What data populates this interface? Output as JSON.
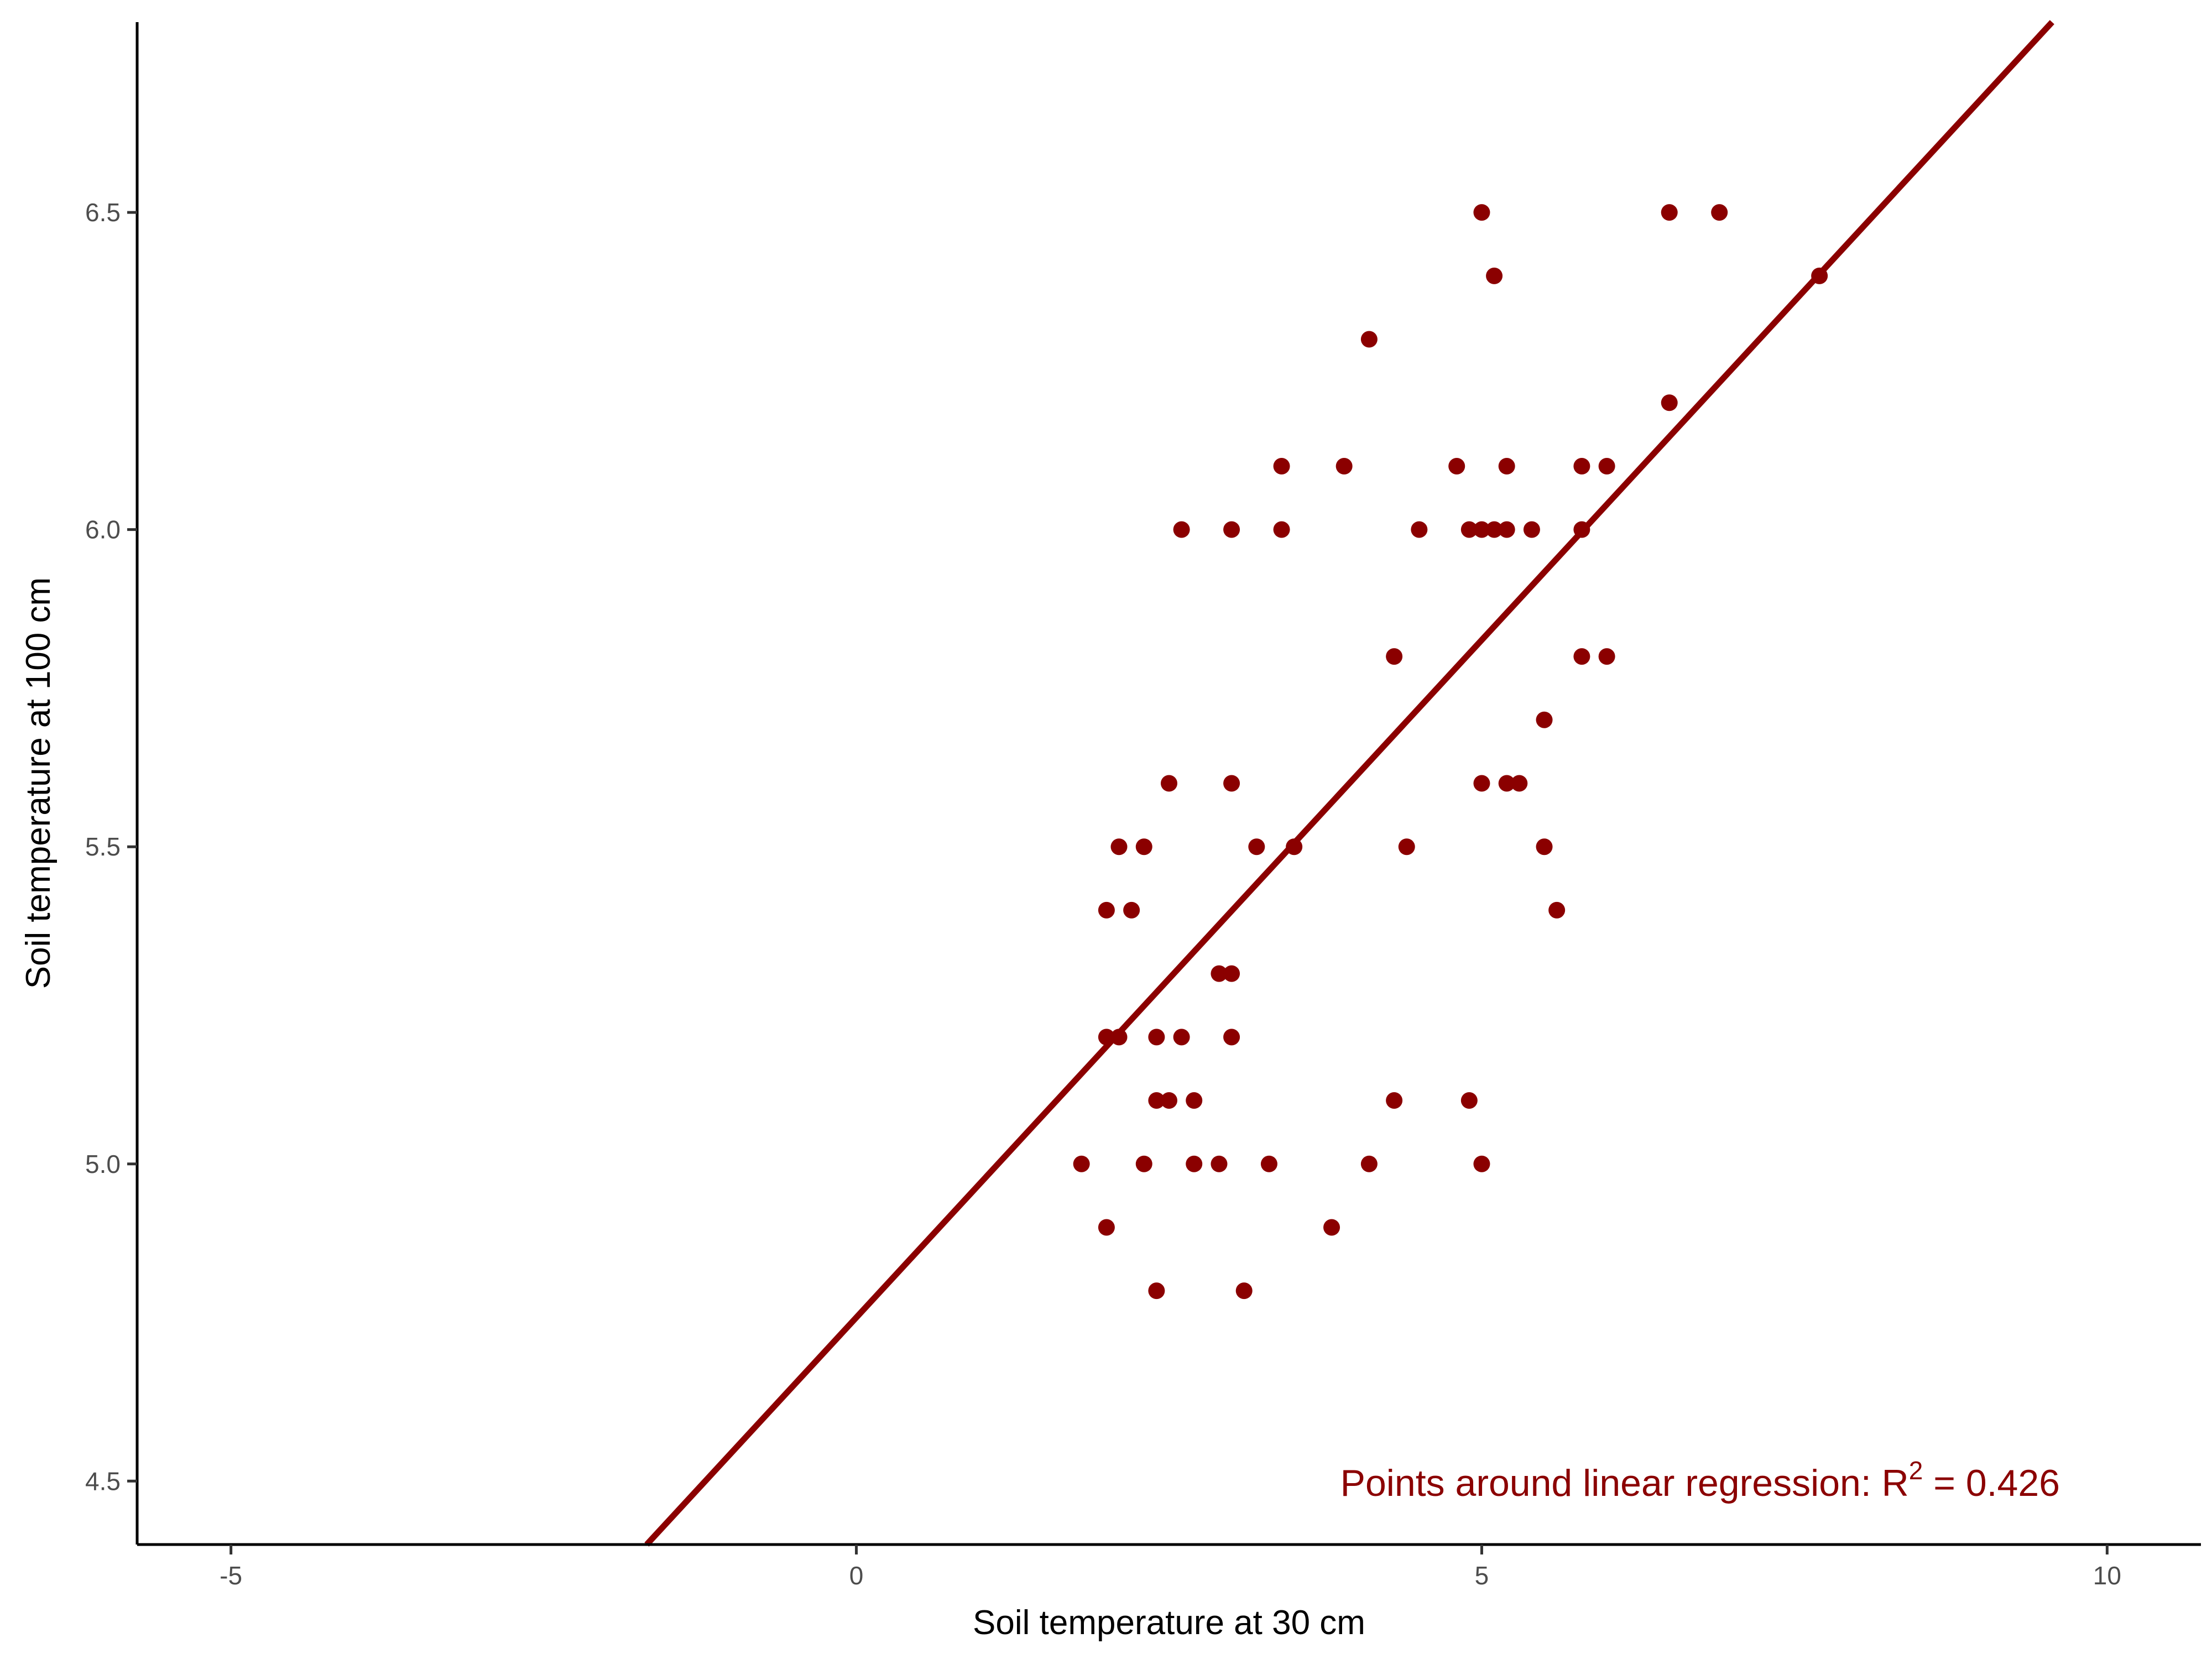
{
  "chart_data": {
    "type": "scatter",
    "xlabel": "Soil temperature at 30 cm",
    "ylabel": "Soil temperature at 100 cm",
    "xlim": [
      -5.75,
      10.75
    ],
    "ylim": [
      4.4,
      6.8
    ],
    "x_ticks": [
      -5,
      0,
      5,
      10
    ],
    "x_tick_labels": [
      "-5",
      "0",
      "5",
      "10"
    ],
    "y_ticks": [
      4.5,
      5.0,
      5.5,
      6.0,
      6.5
    ],
    "y_tick_labels": [
      "4.5",
      "5.0",
      "5.5",
      "6.0",
      "6.5"
    ],
    "grid": false,
    "point_color": "#8B0000",
    "line_color": "#8B0000",
    "points": [
      {
        "x": 1.8,
        "y": 5.0
      },
      {
        "x": 2.0,
        "y": 4.9
      },
      {
        "x": 2.0,
        "y": 5.2
      },
      {
        "x": 2.0,
        "y": 5.4
      },
      {
        "x": 2.1,
        "y": 5.2
      },
      {
        "x": 2.1,
        "y": 5.5
      },
      {
        "x": 2.2,
        "y": 5.4
      },
      {
        "x": 2.3,
        "y": 5.0
      },
      {
        "x": 2.3,
        "y": 5.5
      },
      {
        "x": 2.4,
        "y": 4.8
      },
      {
        "x": 2.4,
        "y": 5.1
      },
      {
        "x": 2.4,
        "y": 5.2
      },
      {
        "x": 2.5,
        "y": 5.1
      },
      {
        "x": 2.5,
        "y": 5.6
      },
      {
        "x": 2.6,
        "y": 5.2
      },
      {
        "x": 2.6,
        "y": 6.0
      },
      {
        "x": 2.7,
        "y": 5.0
      },
      {
        "x": 2.7,
        "y": 5.1
      },
      {
        "x": 2.9,
        "y": 5.0
      },
      {
        "x": 2.9,
        "y": 5.3
      },
      {
        "x": 3.0,
        "y": 5.2
      },
      {
        "x": 3.0,
        "y": 5.3
      },
      {
        "x": 3.0,
        "y": 5.6
      },
      {
        "x": 3.0,
        "y": 6.0
      },
      {
        "x": 3.1,
        "y": 4.8
      },
      {
        "x": 3.2,
        "y": 5.5
      },
      {
        "x": 3.3,
        "y": 5.0
      },
      {
        "x": 3.4,
        "y": 6.0
      },
      {
        "x": 3.4,
        "y": 6.1
      },
      {
        "x": 3.5,
        "y": 5.5
      },
      {
        "x": 3.8,
        "y": 4.9
      },
      {
        "x": 3.9,
        "y": 6.1
      },
      {
        "x": 4.1,
        "y": 5.0
      },
      {
        "x": 4.1,
        "y": 6.3
      },
      {
        "x": 4.3,
        "y": 5.1
      },
      {
        "x": 4.3,
        "y": 5.8
      },
      {
        "x": 4.4,
        "y": 5.5
      },
      {
        "x": 4.5,
        "y": 6.0
      },
      {
        "x": 4.8,
        "y": 6.1
      },
      {
        "x": 4.9,
        "y": 5.1
      },
      {
        "x": 4.9,
        "y": 6.0
      },
      {
        "x": 5.0,
        "y": 5.0
      },
      {
        "x": 5.0,
        "y": 5.6
      },
      {
        "x": 5.0,
        "y": 6.0
      },
      {
        "x": 5.0,
        "y": 6.5
      },
      {
        "x": 5.1,
        "y": 6.0
      },
      {
        "x": 5.1,
        "y": 6.4
      },
      {
        "x": 5.2,
        "y": 5.6
      },
      {
        "x": 5.2,
        "y": 6.0
      },
      {
        "x": 5.2,
        "y": 6.1
      },
      {
        "x": 5.3,
        "y": 5.6
      },
      {
        "x": 5.4,
        "y": 6.0
      },
      {
        "x": 5.5,
        "y": 5.5
      },
      {
        "x": 5.5,
        "y": 5.7
      },
      {
        "x": 5.6,
        "y": 5.4
      },
      {
        "x": 5.8,
        "y": 5.8
      },
      {
        "x": 5.8,
        "y": 6.0
      },
      {
        "x": 5.8,
        "y": 6.1
      },
      {
        "x": 6.0,
        "y": 5.8
      },
      {
        "x": 6.0,
        "y": 6.1
      },
      {
        "x": 6.5,
        "y": 6.2
      },
      {
        "x": 6.5,
        "y": 6.5
      },
      {
        "x": 6.9,
        "y": 6.5
      },
      {
        "x": 7.7,
        "y": 6.4
      }
    ],
    "regression_line": {
      "intercept": 4.758,
      "slope": 0.2136
    },
    "annotation": {
      "prefix": "Points around linear regression: R",
      "superscript": "2",
      "suffix": " = 0.426"
    }
  }
}
